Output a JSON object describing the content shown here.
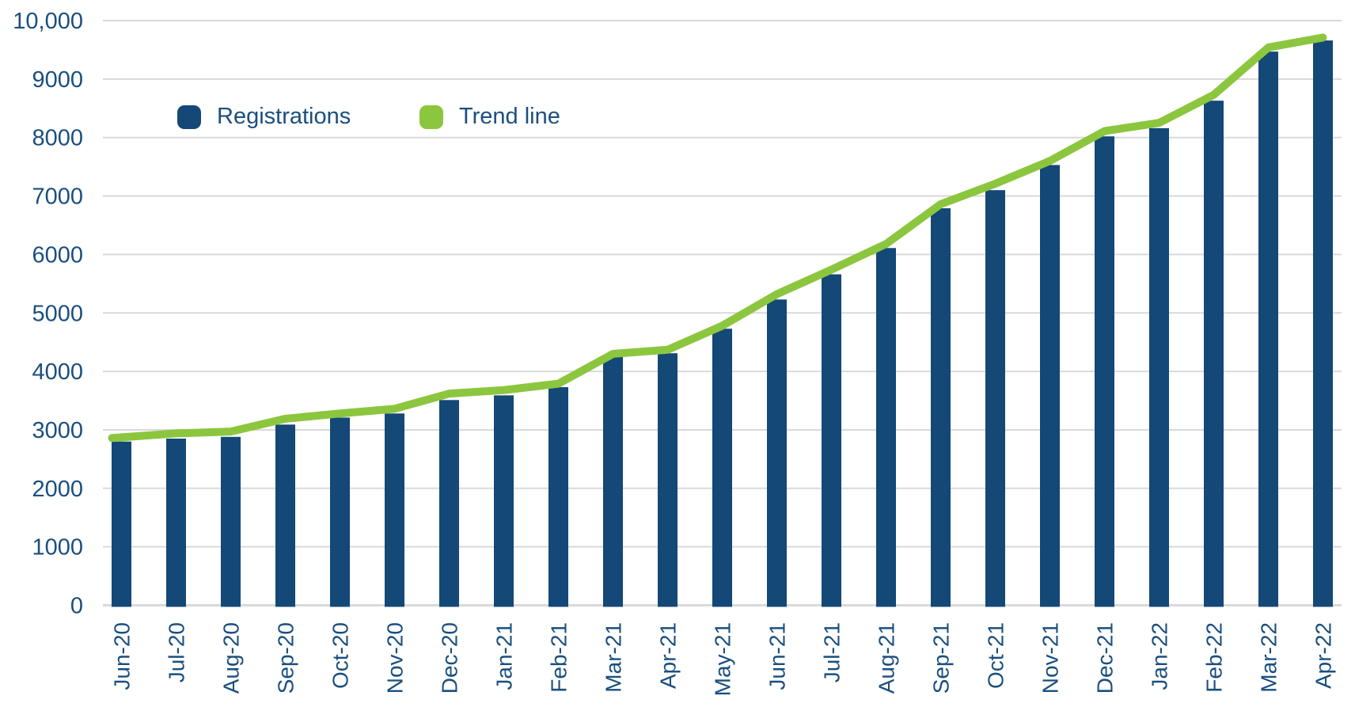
{
  "chart_data": {
    "type": "bar",
    "title": "",
    "xlabel": "",
    "ylabel": "",
    "categories": [
      "Jun-20",
      "Jul-20",
      "Aug-20",
      "Sep-20",
      "Oct-20",
      "Nov-20",
      "Dec-20",
      "Jan-21",
      "Feb-21",
      "Mar-21",
      "Apr-21",
      "May-21",
      "Jun-21",
      "Jul-21",
      "Aug-21",
      "Sep-21",
      "Oct-21",
      "Nov-21",
      "Dec-21",
      "Jan-22",
      "Feb-22",
      "Mar-22",
      "Apr-22"
    ],
    "series": [
      {
        "name": "Registrations",
        "type": "bar",
        "color": "#134877",
        "values": [
          2800,
          2850,
          2880,
          3090,
          3210,
          3280,
          3510,
          3590,
          3730,
          4260,
          4310,
          4730,
          5230,
          5660,
          6110,
          6790,
          7100,
          7530,
          8020,
          8160,
          8630,
          9470,
          9660
        ]
      },
      {
        "name": "Trend line",
        "type": "line",
        "color": "#8CC63F",
        "values": [
          2860,
          2940,
          2970,
          3190,
          3280,
          3360,
          3620,
          3680,
          3790,
          4300,
          4370,
          4780,
          5320,
          5740,
          6180,
          6860,
          7210,
          7600,
          8110,
          8250,
          8730,
          9540,
          9710
        ]
      }
    ],
    "ylim": [
      0,
      10000
    ],
    "ytick_interval": 1000,
    "ytick_labels": [
      "0",
      "1000",
      "2000",
      "3000",
      "4000",
      "5000",
      "6000",
      "7000",
      "8000",
      "9000",
      "10,000"
    ],
    "grid": "horizontal",
    "legend_position": "top-left-inset",
    "x_label_orientation": "vertical"
  },
  "colors": {
    "bar": "#134877",
    "trend": "#8CC63F",
    "axis_text": "#1A4F7E",
    "gridline": "#D9D9D9",
    "background": "#FFFFFF"
  }
}
